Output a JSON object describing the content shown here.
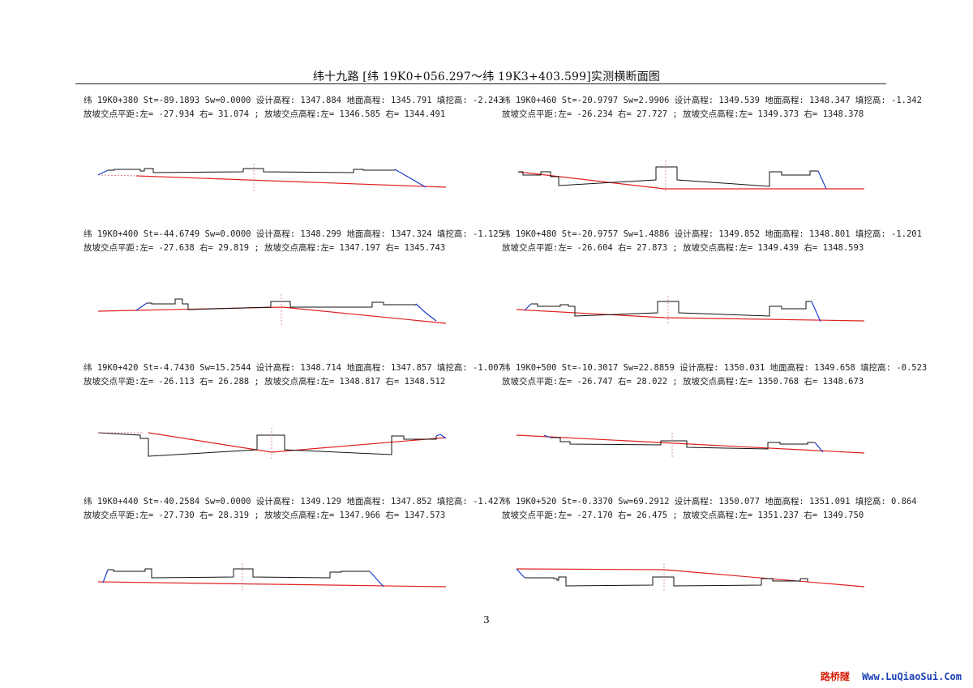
{
  "document": {
    "title": "纬十九路  [纬 19K0+056.297～纬 19K3+403.599]实测横断面图",
    "page_number": "3",
    "watermark_cn": "路桥隧",
    "watermark_url": "Www.LuQiaoSui.Com"
  },
  "sections": [
    {
      "line1": "纬 19K0+380 St=-89.1893 Sw=0.0000 设计高程: 1347.884 地面高程: 1345.791 填挖高: -2.243",
      "line2": "放坡交点平距:左= -27.934 右= 31.074 ; 放坡交点高程:左= 1346.585 右= 1344.491"
    },
    {
      "line1": "纬 19K0+400 St=-44.6749 Sw=0.0000 设计高程: 1348.299 地面高程: 1347.324 填挖高: -1.125",
      "line2": "放坡交点平距:左= -27.638 右= 29.819 ; 放坡交点高程:左= 1347.197 右= 1345.743"
    },
    {
      "line1": "纬 19K0+420 St=-4.7430 Sw=15.2544 设计高程: 1348.714 地面高程: 1347.857 填挖高: -1.007",
      "line2": "放坡交点平距:左= -26.113 右= 26.288 ; 放坡交点高程:左= 1348.817 右= 1348.512"
    },
    {
      "line1": "纬 19K0+440 St=-40.2584 Sw=0.0000 设计高程: 1349.129 地面高程: 1347.852 填挖高: -1.427",
      "line2": "放坡交点平距:左= -27.730 右= 28.319 ; 放坡交点高程:左= 1347.966 右= 1347.573"
    },
    {
      "line1": "纬 19K0+460 St=-20.9797 Sw=2.9906 设计高程: 1349.539 地面高程: 1348.347 填挖高: -1.342",
      "line2": "放坡交点平距:左= -26.234 右= 27.727 ; 放坡交点高程:左= 1349.373 右= 1348.378"
    },
    {
      "line1": "纬 19K0+480 St=-20.9757 Sw=1.4886 设计高程: 1349.852 地面高程: 1348.801 填挖高: -1.201",
      "line2": "放坡交点平距:左= -26.604 右= 27.873 ; 放坡交点高程:左= 1349.439 右= 1348.593"
    },
    {
      "line1": "纬 19K0+500 St=-10.3017 Sw=22.8859 设计高程: 1350.031 地面高程: 1349.658 填挖高: -0.523",
      "line2": "放坡交点平距:左= -26.747 右= 28.022 ; 放坡交点高程:左= 1350.768 右= 1348.673"
    },
    {
      "line1": "纬 19K0+520 St=-0.3370 Sw=69.2912 设计高程: 1350.077 地面高程: 1351.091 填挖高: 0.864",
      "line2": "放坡交点平距:左= -27.170 右= 26.475 ; 放坡交点高程:左= 1351.237 右= 1349.750"
    }
  ],
  "colors": {
    "design_line": "#e02020",
    "ground_line": "#111111",
    "slope_line": "#1c3cc8",
    "centerline": "#d08080"
  }
}
